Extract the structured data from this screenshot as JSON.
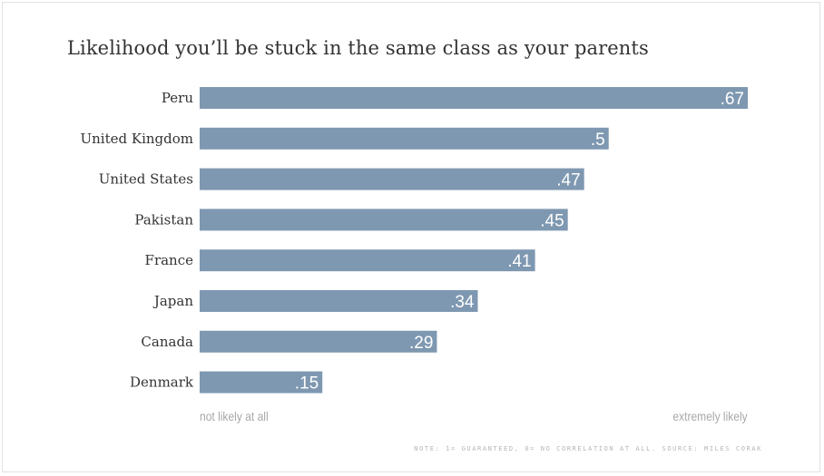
{
  "chart_data": {
    "type": "bar",
    "orientation": "horizontal",
    "title": "Likelihood you’ll be stuck in the same class as your parents",
    "categories": [
      "Peru",
      "United Kingdom",
      "United States",
      "Pakistan",
      "France",
      "Japan",
      "Canada",
      "Denmark"
    ],
    "values": [
      0.67,
      0.5,
      0.47,
      0.45,
      0.41,
      0.34,
      0.29,
      0.15
    ],
    "value_labels": [
      ".67",
      ".5",
      ".47",
      ".45",
      ".41",
      ".34",
      ".29",
      ".15"
    ],
    "xlim": [
      0,
      0.67
    ],
    "axis_min_label": "not likely at all",
    "axis_max_label": "extremely likely",
    "note": "NOTE: 1= GUARANTEED, 0= NO CORRELATION AT ALL. SOURCE: MILES CORAK",
    "grid": false,
    "legend": "none",
    "colors": {
      "bar": "#7f98b1",
      "value_text": "#ffffff",
      "category_text": "#333333",
      "muted_text": "#a8a8a8"
    }
  }
}
